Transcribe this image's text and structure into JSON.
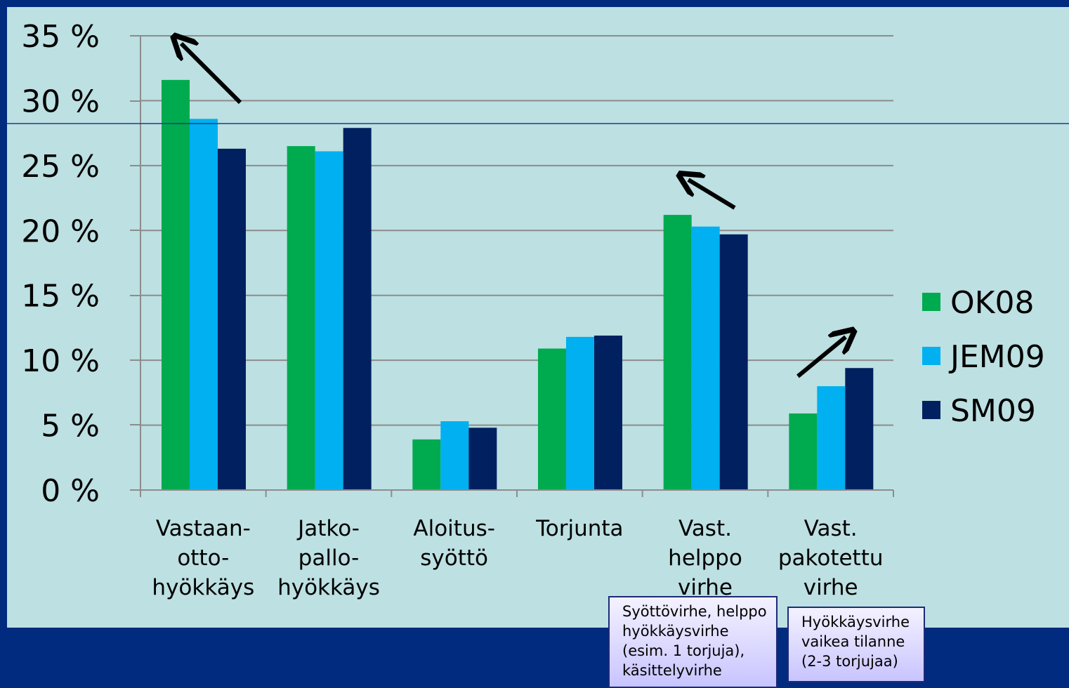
{
  "chart_data": {
    "type": "bar",
    "categories": [
      [
        "Vastaan-",
        "otto-",
        "hyökkäys"
      ],
      [
        "Jatko-",
        "pallo-",
        "hyökkäys"
      ],
      [
        "Aloitus-",
        "syöttö"
      ],
      [
        "Torjunta"
      ],
      [
        "Vast.",
        "helppo",
        "virhe"
      ],
      [
        "Vast.",
        "pakotettu",
        "virhe"
      ]
    ],
    "series": [
      {
        "name": "OK08",
        "color": "#00aa4f",
        "values": [
          31.6,
          26.5,
          3.9,
          10.9,
          21.2,
          5.9
        ]
      },
      {
        "name": "JEM09",
        "color": "#00b0f0",
        "values": [
          28.6,
          26.1,
          5.3,
          11.8,
          20.3,
          8.0
        ]
      },
      {
        "name": "SM09",
        "color": "#002060",
        "values": [
          26.3,
          27.9,
          4.8,
          11.9,
          19.7,
          9.4
        ]
      }
    ],
    "y_ticks": [
      "0 %",
      "5 %",
      "10 %",
      "15 %",
      "20 %",
      "25 %",
      "30 %",
      "35 %"
    ],
    "ylim": [
      0,
      35
    ],
    "grid": true,
    "legend_position": "right",
    "annotations": [
      {
        "label": "up-left-arrow",
        "category_index": 0
      },
      {
        "label": "up-left-arrow",
        "category_index": 4
      },
      {
        "label": "up-right-arrow",
        "category_index": 5
      }
    ]
  },
  "notes": {
    "helppo": [
      "Syöttövirhe, helppo",
      "hyökkäysvirhe",
      "(esim. 1 torjuja),",
      "käsittelyvirhe"
    ],
    "pakotettu": [
      "Hyökkäysvirhe",
      "vaikea tilanne",
      "(2-3 torjujaa)"
    ]
  },
  "colors": {
    "background": "#002b7f",
    "panel": "#bde0e2",
    "grid": "#8c8c8c",
    "arrow": "#000000"
  }
}
